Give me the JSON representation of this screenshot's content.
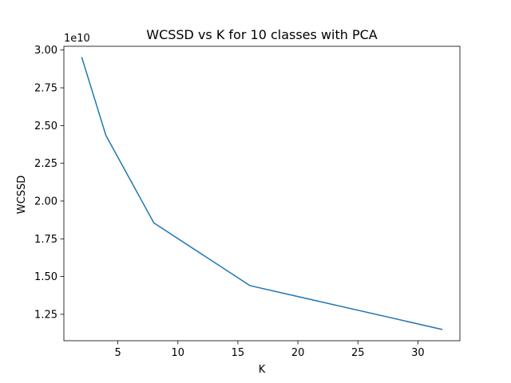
{
  "chart_data": {
    "type": "line",
    "title": "WCSSD vs K for 10 classes with PCA",
    "xlabel": "K",
    "ylabel": "WCSSD",
    "y_offset_label": "1e10",
    "x": [
      2,
      4,
      8,
      16,
      32
    ],
    "series": [
      {
        "values": [
          2.95,
          2.435,
          1.855,
          1.44,
          1.15
        ],
        "color": "#1f77b4"
      }
    ],
    "xlim": [
      0.5,
      33.5
    ],
    "ylim": [
      1.075,
      3.025
    ],
    "x_ticks": [
      5,
      10,
      15,
      20,
      25,
      30
    ],
    "x_tick_labels": [
      "5",
      "10",
      "15",
      "20",
      "25",
      "30"
    ],
    "y_ticks": [
      1.25,
      1.5,
      1.75,
      2.0,
      2.25,
      2.5,
      2.75,
      3.0
    ],
    "y_tick_labels": [
      "1.25",
      "1.50",
      "1.75",
      "2.00",
      "2.25",
      "2.50",
      "2.75",
      "3.00"
    ],
    "grid": false,
    "legend": "none"
  }
}
